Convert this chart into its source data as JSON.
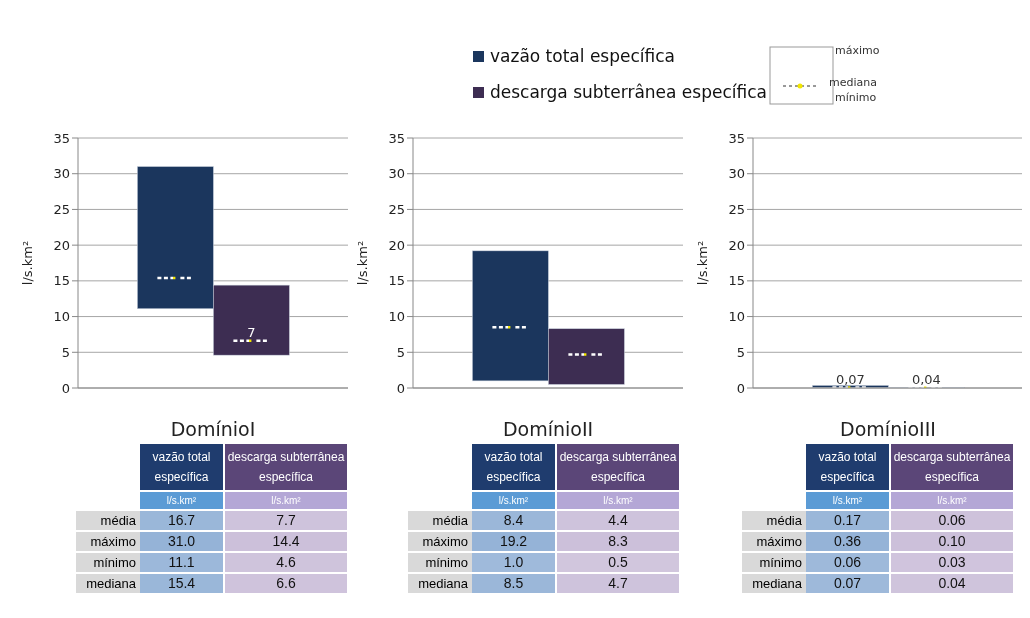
{
  "chart_data": [
    {
      "type": "box",
      "xlabel": "DomínioI",
      "ylabel": "l/s.km²",
      "categories": [
        null
      ],
      "ylim": [
        0,
        35
      ],
      "yticks": [
        0,
        5,
        10,
        15,
        20,
        25,
        30,
        35
      ],
      "grid": "y",
      "legend": "top",
      "annotations": [
        "máximo",
        "mediana",
        "mínimo"
      ],
      "series": [
        {
          "name": "vazão total específica",
          "color": "#1b365d",
          "boxes": [
            {
              "low": 11.1,
              "q1": 11.1,
              "median": 15.4,
              "q3": 31.0,
              "high": 31.0
            }
          ]
        },
        {
          "name": "descarga subterrânea específica",
          "color": "#3d2d52",
          "boxes": [
            {
              "low": 4.6,
              "q1": 4.6,
              "median": 6.6,
              "q3": 14.4,
              "high": 14.4
            }
          ],
          "value_labels": [
            "7"
          ]
        }
      ]
    },
    {
      "type": "box",
      "xlabel": "DomínioII",
      "ylabel": "l/s.km²",
      "categories": [
        null
      ],
      "ylim": [
        0,
        35
      ],
      "yticks": [
        0,
        5,
        10,
        15,
        20,
        25,
        30,
        35
      ],
      "grid": "y",
      "series": [
        {
          "color": "#1b365d",
          "boxes": [
            {
              "low": 1.0,
              "q1": 1.0,
              "median": 8.5,
              "q3": 19.2,
              "high": 19.2
            }
          ]
        },
        {
          "color": "#3d2d52",
          "boxes": [
            {
              "low": 0.5,
              "q1": 0.5,
              "median": 4.7,
              "q3": 8.3,
              "high": 8.3
            }
          ]
        }
      ]
    },
    {
      "type": "box",
      "xlabel": "DomínioIII",
      "ylabel": "l/s.km²",
      "categories": [
        null
      ],
      "ylim": [
        0,
        35
      ],
      "yticks": [
        0,
        5,
        10,
        15,
        20,
        25,
        30,
        35
      ],
      "grid": "y",
      "series": [
        {
          "color": "#1b365d",
          "boxes": [
            {
              "low": 0.06,
              "q1": 0.06,
              "median": 0.07,
              "q3": 0.36,
              "high": 0.36
            }
          ],
          "value_labels": [
            "0,07"
          ]
        },
        {
          "color": "#3d2d52",
          "boxes": [
            {
              "low": 0.03,
              "q1": 0.03,
              "median": 0.04,
              "q3": 0.1,
              "high": 0.1
            }
          ],
          "value_labels": [
            "0,04"
          ]
        }
      ]
    },
    {
      "type": "heatmap",
      "categories": [
        "vazão total específica",
        "descarga subterrânea específica"
      ],
      "y_categories": [
        "média",
        "máximo",
        "mínimo",
        "mediana"
      ],
      "annotations": [
        "l/s.km²",
        "l/s.km²"
      ],
      "cells": [
        [
          16.7,
          7.7
        ],
        [
          31.0,
          14.4
        ],
        [
          11.1,
          4.6
        ],
        [
          15.4,
          6.6
        ]
      ],
      "cell_labels": [
        [
          "16.7",
          "7.7"
        ],
        [
          "31.0",
          "14.4"
        ],
        [
          "11.1",
          "4.6"
        ],
        [
          "15.4",
          "6.6"
        ]
      ]
    },
    {
      "type": "heatmap",
      "categories": [
        "vazão total específica",
        "descarga subterrânea específica"
      ],
      "y_categories": [
        "média",
        "máximo",
        "mínimo",
        "mediana"
      ],
      "annotations": [
        "l/s.km²",
        "l/s.km²"
      ],
      "cells": [
        [
          8.4,
          4.4
        ],
        [
          19.2,
          8.3
        ],
        [
          1.0,
          0.5
        ],
        [
          8.5,
          4.7
        ]
      ],
      "cell_labels": [
        [
          "8.4",
          "4.4"
        ],
        [
          "19.2",
          "8.3"
        ],
        [
          "1.0",
          "0.5"
        ],
        [
          "8.5",
          "4.7"
        ]
      ]
    },
    {
      "type": "heatmap",
      "categories": [
        "vazão total específica",
        "descarga subterrânea específica"
      ],
      "y_categories": [
        "média",
        "máximo",
        "mínimo",
        "mediana"
      ],
      "annotations": [
        "l/s.km²",
        "l/s.km²"
      ],
      "cells": [
        [
          0.17,
          0.06
        ],
        [
          0.36,
          0.1
        ],
        [
          0.06,
          0.03
        ],
        [
          0.07,
          0.04
        ]
      ],
      "cell_labels": [
        [
          "0.17",
          "0.06"
        ],
        [
          "0.36",
          "0.10"
        ],
        [
          "0.06",
          "0.03"
        ],
        [
          "0.07",
          "0.04"
        ]
      ]
    }
  ]
}
